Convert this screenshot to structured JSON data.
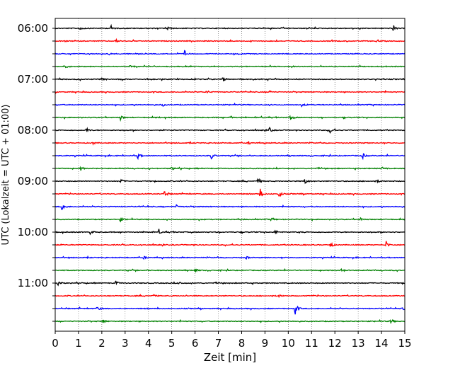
{
  "chart_data": {
    "type": "line",
    "title": "",
    "xlabel": "Zeit  [min]",
    "ylabel": "UTC (Lokalzeit = UTC + 01:00)",
    "xlim": [
      0,
      15
    ],
    "x_ticks": [
      "0",
      "1",
      "2",
      "3",
      "4",
      "5",
      "6",
      "7",
      "8",
      "9",
      "10",
      "11",
      "12",
      "13",
      "14",
      "15"
    ],
    "y_tick_labels": [
      "06:00",
      "07:00",
      "08:00",
      "09:00",
      "10:00",
      "11:00"
    ],
    "grid": "vertical dotted at each minute",
    "trace_colors": [
      "#000000",
      "#ff0000",
      "#0000ff",
      "#008000"
    ],
    "trace_interval_minutes": 15,
    "rows": [
      {
        "start": "06:00",
        "color": "#000000",
        "events": [
          [
            1.05,
            0.5
          ],
          [
            2.4,
            0.4
          ],
          [
            4.8,
            0.35
          ],
          [
            14.5,
            0.55
          ]
        ]
      },
      {
        "start": "06:15",
        "color": "#ff0000",
        "events": [
          [
            2.6,
            0.25
          ],
          [
            13.8,
            0.25
          ]
        ]
      },
      {
        "start": "06:30",
        "color": "#0000ff",
        "events": [
          [
            5.55,
            0.5
          ],
          [
            2.3,
            0.2
          ]
        ]
      },
      {
        "start": "06:45",
        "color": "#008000",
        "events": [
          [
            0.4,
            0.3
          ],
          [
            3.2,
            0.2
          ]
        ]
      },
      {
        "start": "07:00",
        "color": "#000000",
        "events": [
          [
            2.0,
            0.35
          ],
          [
            7.2,
            0.35
          ]
        ]
      },
      {
        "start": "07:15",
        "color": "#ff0000",
        "events": [
          [
            6.5,
            0.25
          ],
          [
            9.2,
            0.2
          ]
        ]
      },
      {
        "start": "07:30",
        "color": "#0000ff",
        "events": [
          [
            4.6,
            0.25
          ],
          [
            10.6,
            0.2
          ]
        ]
      },
      {
        "start": "07:45",
        "color": "#008000",
        "events": [
          [
            2.8,
            0.35
          ],
          [
            7.5,
            0.3
          ],
          [
            10.1,
            0.3
          ]
        ]
      },
      {
        "start": "08:00",
        "color": "#000000",
        "events": [
          [
            1.35,
            0.35
          ],
          [
            9.2,
            0.35
          ],
          [
            11.8,
            0.5
          ]
        ]
      },
      {
        "start": "08:15",
        "color": "#ff0000",
        "events": [
          [
            1.6,
            0.25
          ],
          [
            8.3,
            0.25
          ]
        ]
      },
      {
        "start": "08:30",
        "color": "#0000ff",
        "events": [
          [
            3.55,
            0.45
          ],
          [
            6.7,
            0.5
          ],
          [
            13.2,
            0.4
          ]
        ]
      },
      {
        "start": "08:45",
        "color": "#008000",
        "events": [
          [
            1.1,
            0.3
          ],
          [
            5.0,
            0.3
          ],
          [
            14.0,
            0.25
          ]
        ]
      },
      {
        "start": "09:00",
        "color": "#000000",
        "events": [
          [
            2.8,
            0.4
          ],
          [
            8.7,
            0.45
          ],
          [
            10.7,
            0.55
          ],
          [
            13.8,
            0.35
          ]
        ]
      },
      {
        "start": "09:15",
        "color": "#ff0000",
        "events": [
          [
            4.7,
            0.55
          ],
          [
            8.8,
            0.8
          ],
          [
            9.6,
            0.6
          ]
        ]
      },
      {
        "start": "09:30",
        "color": "#0000ff",
        "events": [
          [
            0.3,
            0.8
          ],
          [
            5.2,
            0.25
          ]
        ]
      },
      {
        "start": "09:45",
        "color": "#008000",
        "events": [
          [
            2.8,
            0.3
          ],
          [
            9.3,
            0.25
          ],
          [
            13.1,
            0.25
          ]
        ]
      },
      {
        "start": "10:00",
        "color": "#000000",
        "events": [
          [
            1.5,
            0.3
          ],
          [
            4.45,
            0.35
          ],
          [
            9.45,
            0.3
          ]
        ]
      },
      {
        "start": "10:15",
        "color": "#ff0000",
        "events": [
          [
            11.8,
            0.6
          ],
          [
            14.2,
            0.6
          ]
        ]
      },
      {
        "start": "10:30",
        "color": "#0000ff",
        "events": [
          [
            3.8,
            0.2
          ],
          [
            8.2,
            0.2
          ]
        ]
      },
      {
        "start": "10:45",
        "color": "#008000",
        "events": [
          [
            6.0,
            0.3
          ],
          [
            12.3,
            0.3
          ]
        ]
      },
      {
        "start": "11:00",
        "color": "#000000",
        "events": [
          [
            0.1,
            0.5
          ],
          [
            2.6,
            0.3
          ],
          [
            5.3,
            0.3
          ]
        ]
      },
      {
        "start": "11:15",
        "color": "#ff0000",
        "events": [
          [
            4.2,
            0.2
          ],
          [
            9.6,
            0.2
          ]
        ]
      },
      {
        "start": "11:30",
        "color": "#0000ff",
        "events": [
          [
            1.8,
            0.35
          ],
          [
            10.3,
            1.0
          ],
          [
            14.9,
            0.3
          ]
        ]
      },
      {
        "start": "11:45",
        "color": "#008000",
        "events": [
          [
            2.05,
            0.35
          ],
          [
            14.4,
            0.4
          ]
        ]
      }
    ]
  }
}
